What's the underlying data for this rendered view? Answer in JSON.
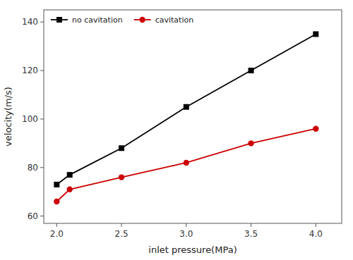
{
  "chart_data": {
    "type": "line",
    "x_label": "inlet pressure(MPa)",
    "y_label": "velocity(m/s)",
    "x": [
      2.0,
      2.1,
      2.5,
      3.0,
      3.5,
      4.0
    ],
    "series": [
      {
        "name": "no cavitation",
        "color": "#000000",
        "marker": "square",
        "values": [
          73,
          77,
          88,
          105,
          120,
          135
        ]
      },
      {
        "name": "cavitation",
        "color": "#cc0000",
        "marker": "circle",
        "values": [
          66,
          71,
          76,
          82,
          90,
          96
        ]
      }
    ],
    "xlim": [
      1.9,
      4.2
    ],
    "ylim": [
      57,
      145
    ],
    "xticks": [
      {
        "value": 2.0,
        "label": "2.0"
      },
      {
        "value": 2.5,
        "label": "2.5"
      },
      {
        "value": 3.0,
        "label": "3.0"
      },
      {
        "value": 3.5,
        "label": "3.5"
      },
      {
        "value": 4.0,
        "label": "4.0"
      }
    ],
    "yticks": [
      60,
      80,
      100,
      120,
      140
    ],
    "legend": "upper left",
    "grid": false
  }
}
